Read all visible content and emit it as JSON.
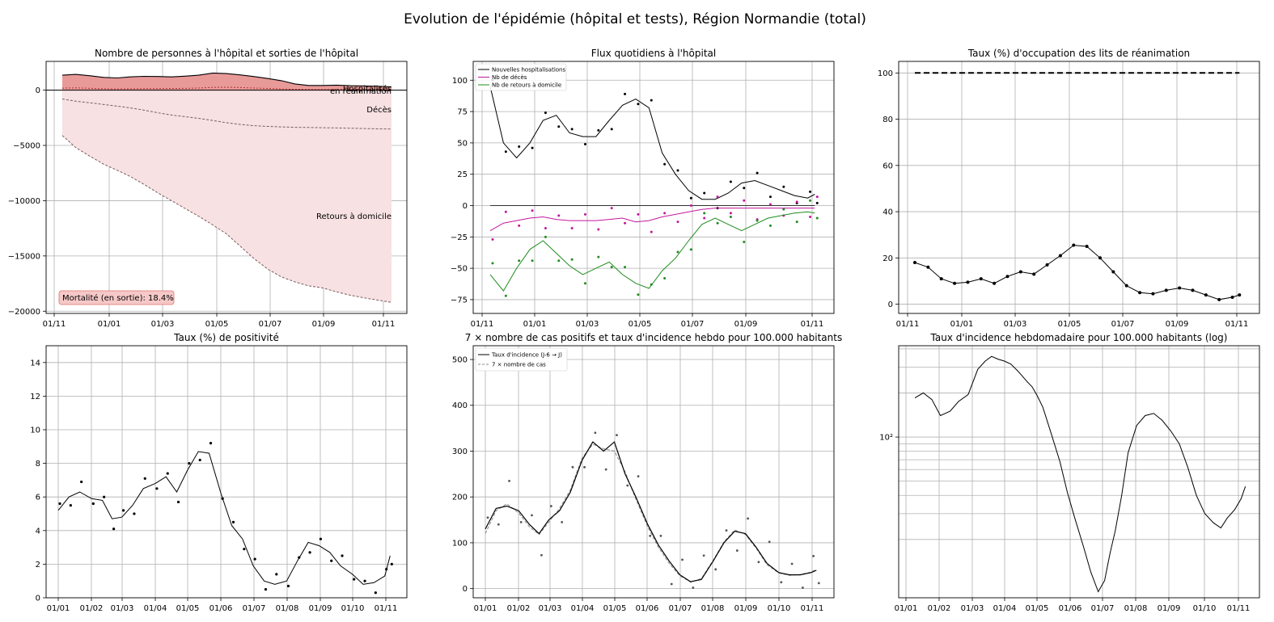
{
  "figure": {
    "title": "Evolution de l'épidémie (hôpital et tests), Région Normandie (total)"
  },
  "chart_data": [
    {
      "id": "hospital",
      "type": "area",
      "title": "Nombre de personnes à l'hôpital et sorties de l'hôpital",
      "xlabel": "",
      "ylabel": "",
      "x_ticks": [
        "01/11",
        "01/01",
        "01/03",
        "01/05",
        "01/07",
        "01/09",
        "01/11"
      ],
      "y_ticks": [
        "0",
        "−5000",
        "−10000",
        "−15000",
        "−20000"
      ],
      "ylim": [
        -20200,
        2600
      ],
      "grid": true,
      "x": [
        0,
        15,
        31,
        46,
        61,
        75,
        90,
        106,
        121,
        136,
        151,
        167,
        182,
        197,
        212,
        228,
        243,
        258,
        273,
        289,
        304,
        319,
        335,
        350,
        365
      ],
      "series": [
        {
          "name": "Hospitalisés",
          "values": [
            1350,
            1420,
            1300,
            1150,
            1100,
            1200,
            1250,
            1230,
            1200,
            1260,
            1350,
            1550,
            1500,
            1380,
            1230,
            1050,
            850,
            560,
            420,
            420,
            450,
            400,
            380,
            350,
            300
          ]
        },
        {
          "name": "en réanimation",
          "values": [
            180,
            200,
            170,
            120,
            110,
            120,
            130,
            140,
            150,
            160,
            190,
            250,
            260,
            230,
            190,
            150,
            110,
            70,
            55,
            50,
            55,
            50,
            45,
            40,
            40
          ]
        },
        {
          "name": "Décès",
          "values": [
            -800,
            -1000,
            -1150,
            -1300,
            -1450,
            -1600,
            -1800,
            -2050,
            -2250,
            -2400,
            -2550,
            -2750,
            -2950,
            -3100,
            -3220,
            -3280,
            -3330,
            -3360,
            -3380,
            -3400,
            -3420,
            -3440,
            -3470,
            -3500,
            -3520
          ]
        },
        {
          "name": "Retours à domicile",
          "values": [
            -4100,
            -5200,
            -6000,
            -6700,
            -7250,
            -7800,
            -8500,
            -9300,
            -10000,
            -10700,
            -11400,
            -12200,
            -13000,
            -14100,
            -15200,
            -16200,
            -16900,
            -17350,
            -17700,
            -17900,
            -18250,
            -18550,
            -18800,
            -19000,
            -19200
          ]
        }
      ],
      "series_labels": [
        "Hospitalisés",
        "en réanimation",
        "Décès",
        "Retours à domicile"
      ],
      "annotation": "Mortalité (en sortie): 18.4%",
      "colors": {
        "hospital_fill": "#e89a99",
        "exits_fill": "#f7e1e2",
        "line": "#000000",
        "dashed": "#7b5d5d"
      }
    },
    {
      "id": "daily_flows",
      "type": "scatter",
      "title": "Flux quotidiens à l'hôpital",
      "xlabel": "",
      "ylabel": "",
      "x_ticks": [
        "01/11",
        "01/01",
        "01/03",
        "01/05",
        "01/07",
        "01/09",
        "01/11"
      ],
      "y_ticks": [
        "100",
        "75",
        "50",
        "25",
        "0",
        "−25",
        "−50",
        "−75"
      ],
      "ylim": [
        -86,
        115
      ],
      "grid": true,
      "legend_position": "top-left",
      "series": [
        {
          "name": "Nouvelles hospitalisations",
          "color": "#000000",
          "x": [
            0,
            15,
            30,
            45,
            60,
            75,
            90,
            105,
            120,
            135,
            150,
            165,
            180,
            195,
            210,
            225,
            240,
            255,
            270,
            285,
            300,
            315,
            330,
            345,
            360,
            368
          ],
          "values": [
            95,
            50,
            38,
            50,
            68,
            72,
            58,
            55,
            55,
            68,
            80,
            85,
            78,
            42,
            25,
            12,
            5,
            5,
            10,
            18,
            20,
            16,
            12,
            8,
            6,
            9
          ]
        },
        {
          "name": "Nb de décès",
          "color": "#c2189e",
          "x": [
            0,
            15,
            30,
            45,
            60,
            75,
            90,
            105,
            120,
            135,
            150,
            165,
            180,
            195,
            210,
            225,
            240,
            255,
            270,
            285,
            300,
            315,
            330,
            345,
            360,
            368
          ],
          "values": [
            -20,
            -14,
            -12,
            -10,
            -9,
            -11,
            -12,
            -12,
            -12,
            -11,
            -10,
            -13,
            -12,
            -9,
            -7,
            -5,
            -3,
            -2,
            -2,
            -2,
            -2,
            -2,
            -2,
            -2,
            -2,
            -2
          ]
        },
        {
          "name": "Nb de retours à domicile",
          "color": "#1e8c1e",
          "x": [
            0,
            15,
            30,
            45,
            60,
            75,
            90,
            105,
            120,
            135,
            150,
            165,
            180,
            195,
            210,
            225,
            240,
            255,
            270,
            285,
            300,
            315,
            330,
            345,
            360,
            368
          ],
          "values": [
            -55,
            -68,
            -50,
            -35,
            -28,
            -38,
            -48,
            -55,
            -50,
            -45,
            -55,
            -62,
            -66,
            -52,
            -42,
            -28,
            -15,
            -10,
            -15,
            -20,
            -15,
            -10,
            -8,
            -6,
            -5,
            -6
          ]
        }
      ]
    },
    {
      "id": "icu_occupancy",
      "type": "line",
      "title": "Taux (%) d'occupation des lits de réanimation",
      "xlabel": "",
      "ylabel": "",
      "x_ticks": [
        "01/11",
        "01/01",
        "01/03",
        "01/05",
        "01/07",
        "01/09",
        "01/11"
      ],
      "y_ticks": [
        "0",
        "20",
        "40",
        "60",
        "80",
        "100"
      ],
      "ylim": [
        -4,
        105
      ],
      "grid": true,
      "x": [
        0,
        15,
        30,
        45,
        60,
        75,
        90,
        105,
        120,
        135,
        150,
        165,
        180,
        195,
        210,
        225,
        240,
        255,
        270,
        285,
        300,
        315,
        330,
        345,
        360,
        368
      ],
      "series": [
        {
          "name": "",
          "values": [
            18,
            16,
            11,
            9,
            9.5,
            11,
            9,
            12,
            14,
            13,
            17,
            21,
            25.5,
            25,
            20,
            14,
            8,
            5,
            4.5,
            6,
            7,
            6,
            4,
            2,
            3,
            4
          ]
        }
      ],
      "reference_line": 100
    },
    {
      "id": "positivity",
      "type": "scatter",
      "title": "Taux (%) de positivité",
      "xlabel": "",
      "ylabel": "",
      "x_ticks": [
        "01/01",
        "01/02",
        "01/03",
        "01/04",
        "01/05",
        "01/06",
        "01/07",
        "01/08",
        "01/09",
        "01/10",
        "01/11"
      ],
      "y_ticks": [
        "0",
        "2",
        "4",
        "6",
        "8",
        "10",
        "12",
        "14"
      ],
      "ylim": [
        0,
        15
      ],
      "grid": true,
      "x": [
        0,
        10,
        20,
        31,
        41,
        50,
        59,
        69,
        79,
        90,
        100,
        110,
        120,
        130,
        140,
        151,
        161,
        171,
        181,
        191,
        201,
        212,
        222,
        232,
        242,
        252,
        262,
        273,
        283,
        293,
        303,
        308
      ],
      "series": [
        {
          "name": "",
          "values": [
            5.2,
            6.0,
            6.3,
            5.9,
            5.8,
            4.7,
            4.8,
            5.5,
            6.5,
            6.8,
            7.2,
            6.3,
            7.6,
            8.7,
            8.6,
            6.2,
            4.3,
            3.5,
            1.9,
            1.0,
            0.8,
            1.0,
            2.2,
            3.3,
            3.1,
            2.7,
            1.9,
            1.4,
            0.8,
            0.9,
            1.3,
            2.5
          ]
        }
      ]
    },
    {
      "id": "cases",
      "type": "line",
      "title": "7 × nombre de cas positifs et taux d'incidence hebdo pour 100.000 habitants",
      "xlabel": "",
      "ylabel": "",
      "x_ticks": [
        "01/01",
        "01/02",
        "01/03",
        "01/04",
        "01/05",
        "01/06",
        "01/07",
        "01/08",
        "01/09",
        "01/10",
        "01/11"
      ],
      "y_ticks": [
        "0",
        "100",
        "200",
        "300",
        "400",
        "500"
      ],
      "ylim": [
        -20,
        530
      ],
      "grid": true,
      "legend_position": "top-left",
      "x": [
        0,
        10,
        20,
        31,
        41,
        50,
        59,
        69,
        79,
        90,
        100,
        110,
        120,
        130,
        140,
        151,
        161,
        171,
        181,
        191,
        201,
        212,
        222,
        232,
        242,
        252,
        262,
        273,
        283,
        293,
        303,
        308
      ],
      "series": [
        {
          "name": "Taux d'incidence (J-6 → J)",
          "values": [
            130,
            175,
            180,
            170,
            140,
            120,
            150,
            170,
            210,
            280,
            320,
            300,
            320,
            250,
            200,
            140,
            95,
            60,
            30,
            15,
            20,
            60,
            100,
            125,
            120,
            90,
            55,
            35,
            30,
            30,
            35,
            40
          ]
        },
        {
          "name": "7 × nombre de cas",
          "values": [
            120,
            170,
            185,
            165,
            135,
            118,
            145,
            175,
            215,
            285,
            315,
            305,
            300,
            255,
            195,
            135,
            90,
            55,
            28,
            14,
            22,
            62,
            102,
            128,
            118,
            88,
            52,
            34,
            29,
            31,
            36,
            42
          ]
        }
      ],
      "points_series": "7 × nombre de cas"
    },
    {
      "id": "incidence_log",
      "type": "line",
      "title": "Taux d'incidence hebdomadaire pour 100.000 habitants (log)",
      "xlabel": "",
      "ylabel": "",
      "x_ticks": [
        "01/01",
        "01/02",
        "01/03",
        "01/04",
        "01/05",
        "01/06",
        "01/07",
        "01/08",
        "01/09",
        "01/10",
        "01/11"
      ],
      "y_ticks": [
        "10²"
      ],
      "y_scale": "log",
      "ylim": [
        8,
        420
      ],
      "grid": true,
      "x": [
        0,
        8,
        16,
        24,
        33,
        41,
        50,
        59,
        66,
        72,
        78,
        84,
        90,
        96,
        100,
        105,
        110,
        115,
        120,
        128,
        136,
        143,
        150,
        158,
        165,
        172,
        178,
        183,
        188,
        194,
        200,
        208,
        216,
        224,
        232,
        240,
        248,
        256,
        264,
        272,
        280,
        287,
        293,
        300,
        306,
        310
      ],
      "series": [
        {
          "name": "",
          "values": [
            185,
            200,
            180,
            140,
            150,
            175,
            195,
            290,
            330,
            355,
            340,
            330,
            315,
            285,
            265,
            240,
            220,
            190,
            160,
            105,
            68,
            42,
            28,
            18,
            12,
            8.8,
            10.5,
            16,
            23,
            40,
            78,
            120,
            140,
            145,
            130,
            110,
            90,
            62,
            40,
            30,
            26,
            24,
            28,
            32,
            38,
            46
          ]
        }
      ]
    }
  ]
}
